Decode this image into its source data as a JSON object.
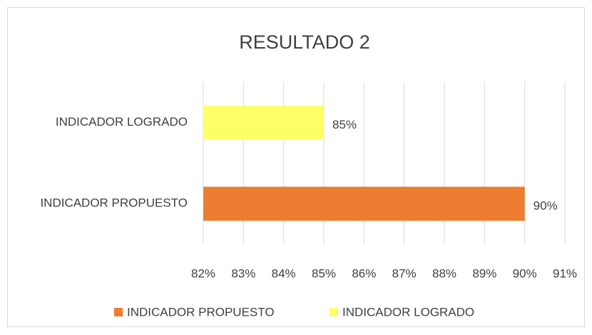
{
  "chart_data": {
    "type": "bar",
    "orientation": "horizontal",
    "title": "RESULTADO 2",
    "categories": [
      "INDICADOR PROPUESTO",
      "INDICADOR LOGRADO"
    ],
    "values": [
      90,
      85
    ],
    "value_labels": [
      "90%",
      "85%"
    ],
    "colors": [
      "#ed7d31",
      "#ffff66"
    ],
    "xlim": [
      82,
      91
    ],
    "xticks": [
      {
        "value": 82,
        "label": "82%"
      },
      {
        "value": 83,
        "label": "83%"
      },
      {
        "value": 84,
        "label": "84%"
      },
      {
        "value": 85,
        "label": "85%"
      },
      {
        "value": 86,
        "label": "86%"
      },
      {
        "value": 87,
        "label": "87%"
      },
      {
        "value": 88,
        "label": "88%"
      },
      {
        "value": 89,
        "label": "89%"
      },
      {
        "value": 90,
        "label": "90%"
      },
      {
        "value": 91,
        "label": "91%"
      }
    ],
    "grid": true,
    "legend": "bottom"
  }
}
